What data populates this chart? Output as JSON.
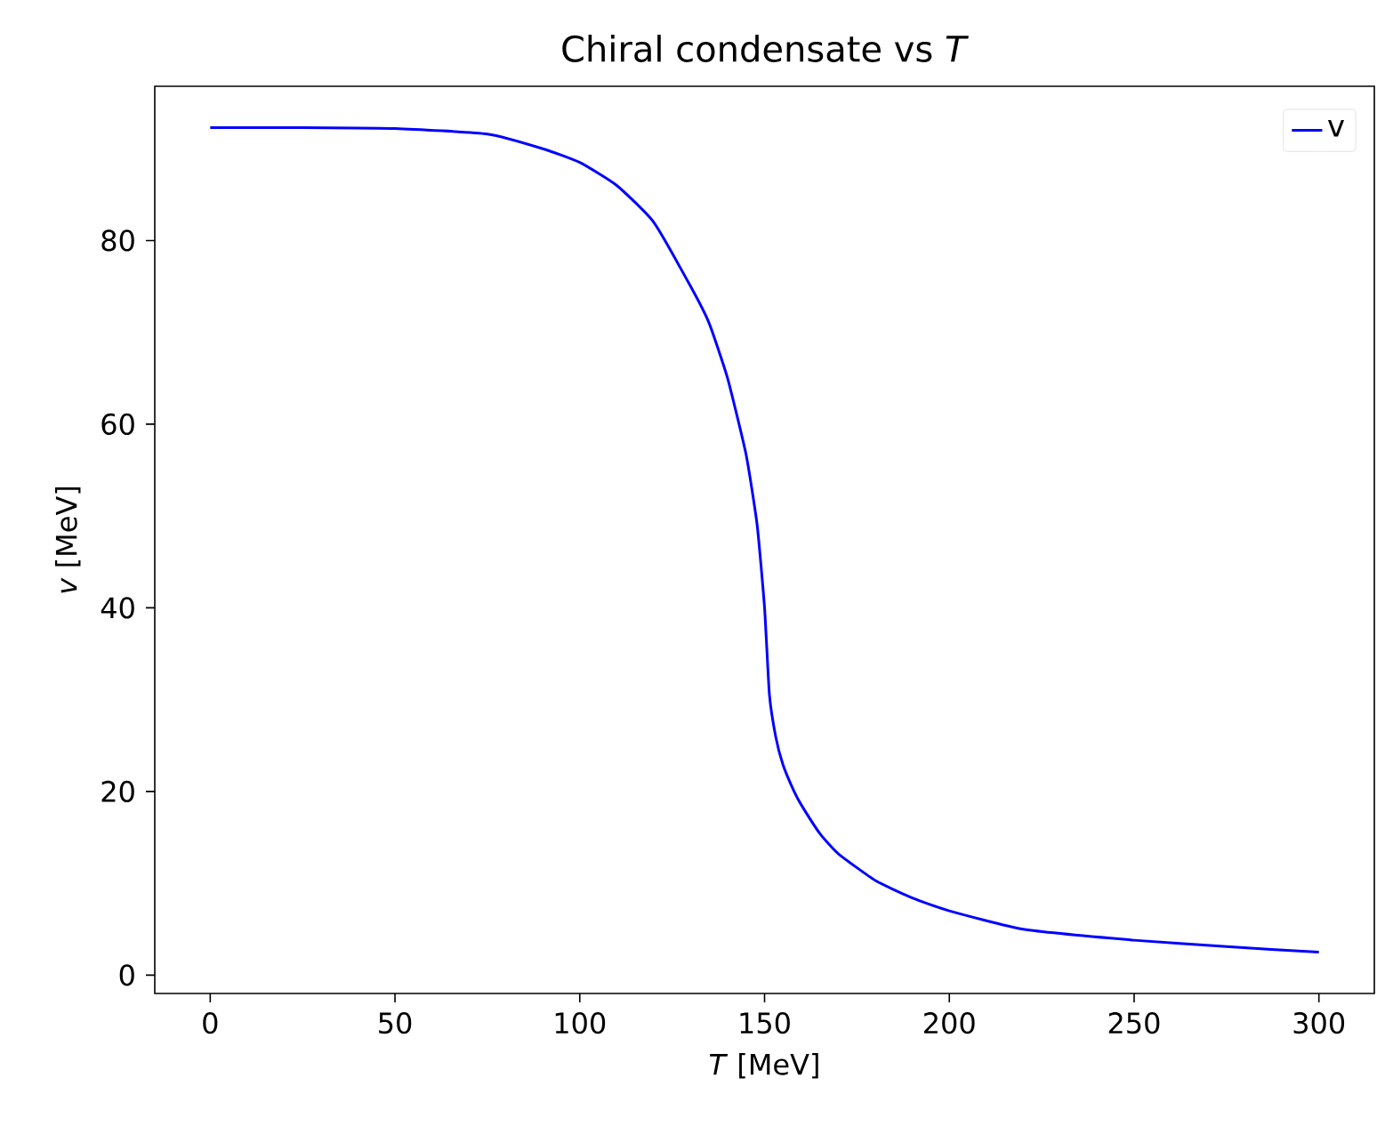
{
  "chart_data": {
    "type": "line",
    "title": "Chiral condensate vs *T*",
    "xlabel": "*T* [MeV]",
    "ylabel": "*v* [MeV]",
    "x": [
      0,
      25,
      50,
      75,
      90,
      100,
      110,
      120,
      130,
      135,
      140,
      145,
      148,
      150,
      151.3,
      153,
      155,
      158,
      160,
      165,
      170,
      180,
      190,
      200,
      220,
      250,
      275,
      300
    ],
    "series": [
      {
        "name": "v",
        "color": "#0000ff",
        "values": [
          92.3,
          92.3,
          92.2,
          91.6,
          90,
          88.5,
          86,
          82,
          75,
          71,
          65,
          56.7,
          49,
          40,
          30.6,
          26,
          22.9,
          20,
          18.5,
          15.4,
          13.2,
          10.3,
          8.4,
          7.0,
          5.0,
          3.8,
          3.1,
          2.5
        ]
      }
    ],
    "xlim": [
      -15,
      315
    ],
    "ylim": [
      -2,
      96.8
    ],
    "xticks": [
      0,
      50,
      100,
      150,
      200,
      250,
      300
    ],
    "yticks": [
      0,
      20,
      40,
      60,
      80
    ],
    "legend": "top right",
    "grid": false,
    "line_style": "solid",
    "marker": "none"
  }
}
